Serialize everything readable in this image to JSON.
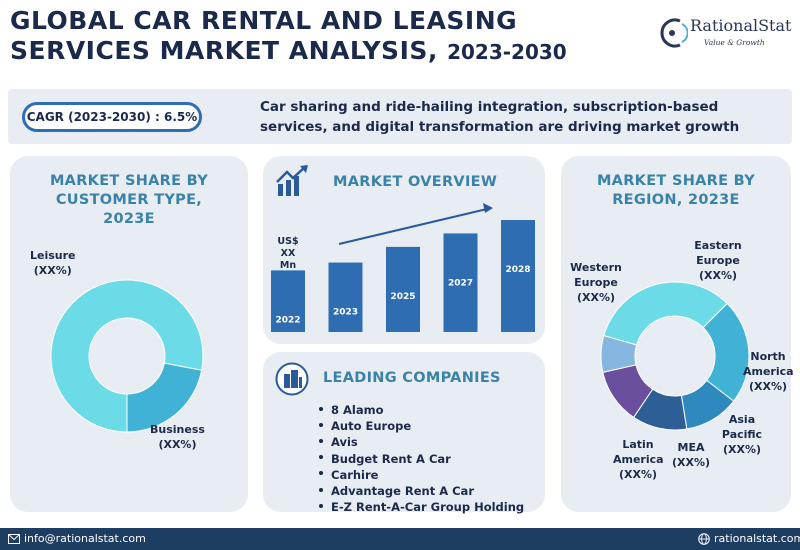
{
  "header": {
    "title_line1": "GLOBAL CAR RENTAL AND LEASING",
    "title_line2": "SERVICES MARKET ANALYSIS,",
    "title_years": "2023-2030"
  },
  "logo": {
    "name": "RationalStat",
    "tagline": "Value & Growth"
  },
  "banner": {
    "cagr": "CAGR (2023-2030) : 6.5%",
    "text": "Car sharing and ride-hailing integration, subscription-based services, and digital transformation are driving market growth"
  },
  "customer_panel": {
    "title": "MARKET SHARE BY CUSTOMER TYPE, 2023E",
    "labels": [
      {
        "name": "Leisure",
        "value": "(XX%)"
      },
      {
        "name": "Business",
        "value": "(XX%)"
      }
    ]
  },
  "overview_panel": {
    "title": "MARKET OVERVIEW",
    "unit_label": "US$ XX Mn"
  },
  "companies_panel": {
    "title": "LEADING COMPANIES",
    "companies": [
      "8 Alamo",
      "Auto Europe",
      "Avis",
      "Budget Rent A Car",
      "Carhire",
      "Advantage Rent A Car",
      "E-Z Rent-A-Car Group Holding"
    ]
  },
  "region_panel": {
    "title": "MARKET SHARE BY REGION, 2023E",
    "labels": [
      {
        "name": "Western Europe",
        "value": "(XX%)"
      },
      {
        "name": "Eastern Europe",
        "value": "(XX%)"
      },
      {
        "name": "North America",
        "value": "(XX%)"
      },
      {
        "name": "Asia Pacific",
        "value": "(XX%)"
      },
      {
        "name": "MEA",
        "value": "(XX%)"
      },
      {
        "name": "Latin America",
        "value": "(XX%)"
      }
    ]
  },
  "footer": {
    "email": "info@rationalstat.com",
    "website": "rationalstat.com"
  },
  "colors": {
    "navy": "#1b2a4a",
    "accent_blue": "#3a82a8",
    "panel_bg": "#e7edf2",
    "bar_blue": "#2f6db2",
    "footer_bg": "#1d3d63"
  },
  "icons": [
    "rising-chart-icon",
    "buildings-icon",
    "email-icon",
    "globe-icon"
  ],
  "chart_data": [
    {
      "type": "pie",
      "title": "MARKET SHARE BY CUSTOMER TYPE, 2023E",
      "donut": true,
      "labels": [
        "Leisure",
        "Business"
      ],
      "values": [
        78,
        22
      ],
      "colors": [
        "#6bdbe8",
        "#3fb2d6"
      ]
    },
    {
      "type": "bar",
      "title": "MARKET OVERVIEW",
      "ylabel": "US$ XX Mn",
      "categories": [
        "2022",
        "2023",
        "2025",
        "2027",
        "2028"
      ],
      "values": [
        55,
        62,
        76,
        88,
        100
      ],
      "ylim": [
        0,
        100
      ],
      "trend_arrow": true
    },
    {
      "type": "pie",
      "title": "MARKET SHARE BY REGION, 2023E",
      "donut": true,
      "labels": [
        "Western Europe",
        "Eastern Europe",
        "North America",
        "Asia Pacific",
        "MEA",
        "Latin America"
      ],
      "values": [
        33,
        23,
        12,
        12,
        12,
        8
      ],
      "colors": [
        "#6bdbe8",
        "#3fb2d6",
        "#2f88be",
        "#2d5e96",
        "#6a4f9e",
        "#86b7e0"
      ]
    }
  ]
}
